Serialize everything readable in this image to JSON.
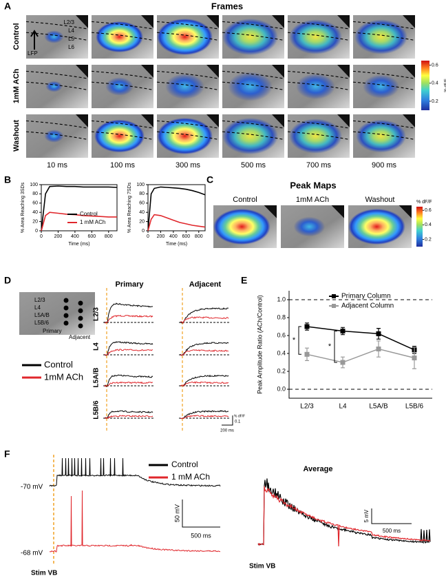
{
  "figure": {
    "A": {
      "label": "A",
      "title": "Frames",
      "rows": [
        "Control",
        "1mM ACh",
        "Washout"
      ],
      "times": [
        "10 ms",
        "100 ms",
        "300 ms",
        "500 ms",
        "700 ms",
        "900 ms"
      ],
      "layers": [
        "L2/3",
        "L4",
        "L5",
        "L6"
      ],
      "lfp": "LFP",
      "colorbar": {
        "label": "% dF/F",
        "ticks": [
          0.2,
          0.4,
          0.6
        ],
        "lim": [
          0.1,
          0.65
        ]
      }
    },
    "B": {
      "label": "B"
    },
    "C": {
      "label": "C",
      "title": "Peak Maps",
      "maps": [
        "Control",
        "1mM ACh",
        "Washout"
      ],
      "colorbar": {
        "label": "% dF/F",
        "ticks": [
          0.2,
          0.4,
          0.6
        ],
        "lim": [
          0.1,
          0.65
        ]
      }
    },
    "D": {
      "label": "D",
      "columns": [
        "Primary",
        "Adjacent"
      ],
      "rows": [
        "L2/3",
        "L4",
        "L5A/B",
        "L5B/6"
      ],
      "inset_layers": [
        "L2/3",
        "L4",
        "L5A/B",
        "L5B/6"
      ],
      "inset_columns": [
        "Primary",
        "Adjacent"
      ],
      "legend": [
        {
          "name": "Control",
          "color": "#000000"
        },
        {
          "name": "1mM ACh",
          "color": "#e0262b"
        }
      ],
      "scale": {
        "amplitude": "0.1",
        "unit": "% dF/F",
        "time": "200 ms"
      }
    },
    "E": {
      "label": "E"
    },
    "F": {
      "label": "F",
      "resting": [
        "-70 mV",
        "-68 mV"
      ],
      "stim": "Stim VB",
      "legend": [
        {
          "name": "Control",
          "color": "#000000"
        },
        {
          "name": "1 mM ACh",
          "color": "#e0262b"
        }
      ],
      "scale": {
        "voltage": "50 mV",
        "time": "500 ms"
      },
      "average": {
        "title": "Average",
        "scale": {
          "voltage": "5 mV",
          "time": "500 ms"
        },
        "stim": "Stim VB"
      }
    }
  },
  "chart_data": [
    {
      "type": "line",
      "ylabel": "% Area Reaching 3SDs",
      "xlabel": "Time (ms)",
      "x": [
        0,
        50,
        100,
        200,
        300,
        400,
        500,
        600,
        700,
        800,
        900
      ],
      "series": [
        {
          "name": "Control",
          "color": "#000000",
          "values": [
            0,
            80,
            96,
            97,
            96,
            96,
            95,
            95,
            95,
            95,
            94
          ]
        },
        {
          "name": "1 mM ACh",
          "color": "#e0262b",
          "values": [
            0,
            33,
            40,
            38,
            36,
            35,
            33,
            32,
            31,
            30,
            30
          ]
        }
      ],
      "xlim": [
        0,
        900
      ],
      "ylim": [
        0,
        100
      ],
      "xticks": [
        0,
        200,
        400,
        600,
        800
      ],
      "yticks": [
        0,
        20,
        40,
        60,
        80,
        100
      ],
      "legend": "lower right"
    },
    {
      "type": "line",
      "ylabel": "% Area Reaching 7SDs",
      "xlabel": "Time (ms)",
      "x": [
        0,
        50,
        100,
        200,
        300,
        400,
        500,
        600,
        700,
        800,
        900
      ],
      "series": [
        {
          "color": "#000000",
          "values": [
            0,
            80,
            92,
            95,
            94,
            93,
            92,
            90,
            87,
            83,
            78
          ]
        },
        {
          "color": "#e0262b",
          "values": [
            0,
            25,
            35,
            33,
            28,
            23,
            18,
            15,
            12,
            10,
            8
          ]
        }
      ],
      "xlim": [
        0,
        900
      ],
      "ylim": [
        0,
        100
      ],
      "xticks": [
        0,
        200,
        400,
        600,
        800
      ],
      "yticks": [
        0,
        20,
        40,
        60,
        80,
        100
      ]
    },
    {
      "type": "line",
      "ylabel": "Peak Amplitude Ratio (ACh/Control)",
      "categories": [
        "L2/3",
        "L4",
        "L5A/B",
        "L5B/6"
      ],
      "series": [
        {
          "name": "Primary Column",
          "color": "#000000",
          "marker": "square",
          "values": [
            0.7,
            0.65,
            0.62,
            0.44
          ],
          "errors": [
            0.04,
            0.04,
            0.06,
            0.04
          ]
        },
        {
          "name": "Adjacent Column",
          "color": "#999999",
          "marker": "square",
          "values": [
            0.39,
            0.3,
            0.45,
            0.35
          ],
          "errors": [
            0.07,
            0.06,
            0.09,
            0.12
          ]
        }
      ],
      "ylim": [
        -0.1,
        1.1
      ],
      "yticks": [
        {
          "value": 0,
          "label": "0.0"
        },
        0.2,
        0.4,
        0.6,
        0.8,
        {
          "value": 1,
          "label": "1.0"
        }
      ],
      "reference_lines": [
        0,
        1
      ],
      "annotations": [
        "*",
        "*"
      ],
      "legend": "upper right"
    }
  ]
}
